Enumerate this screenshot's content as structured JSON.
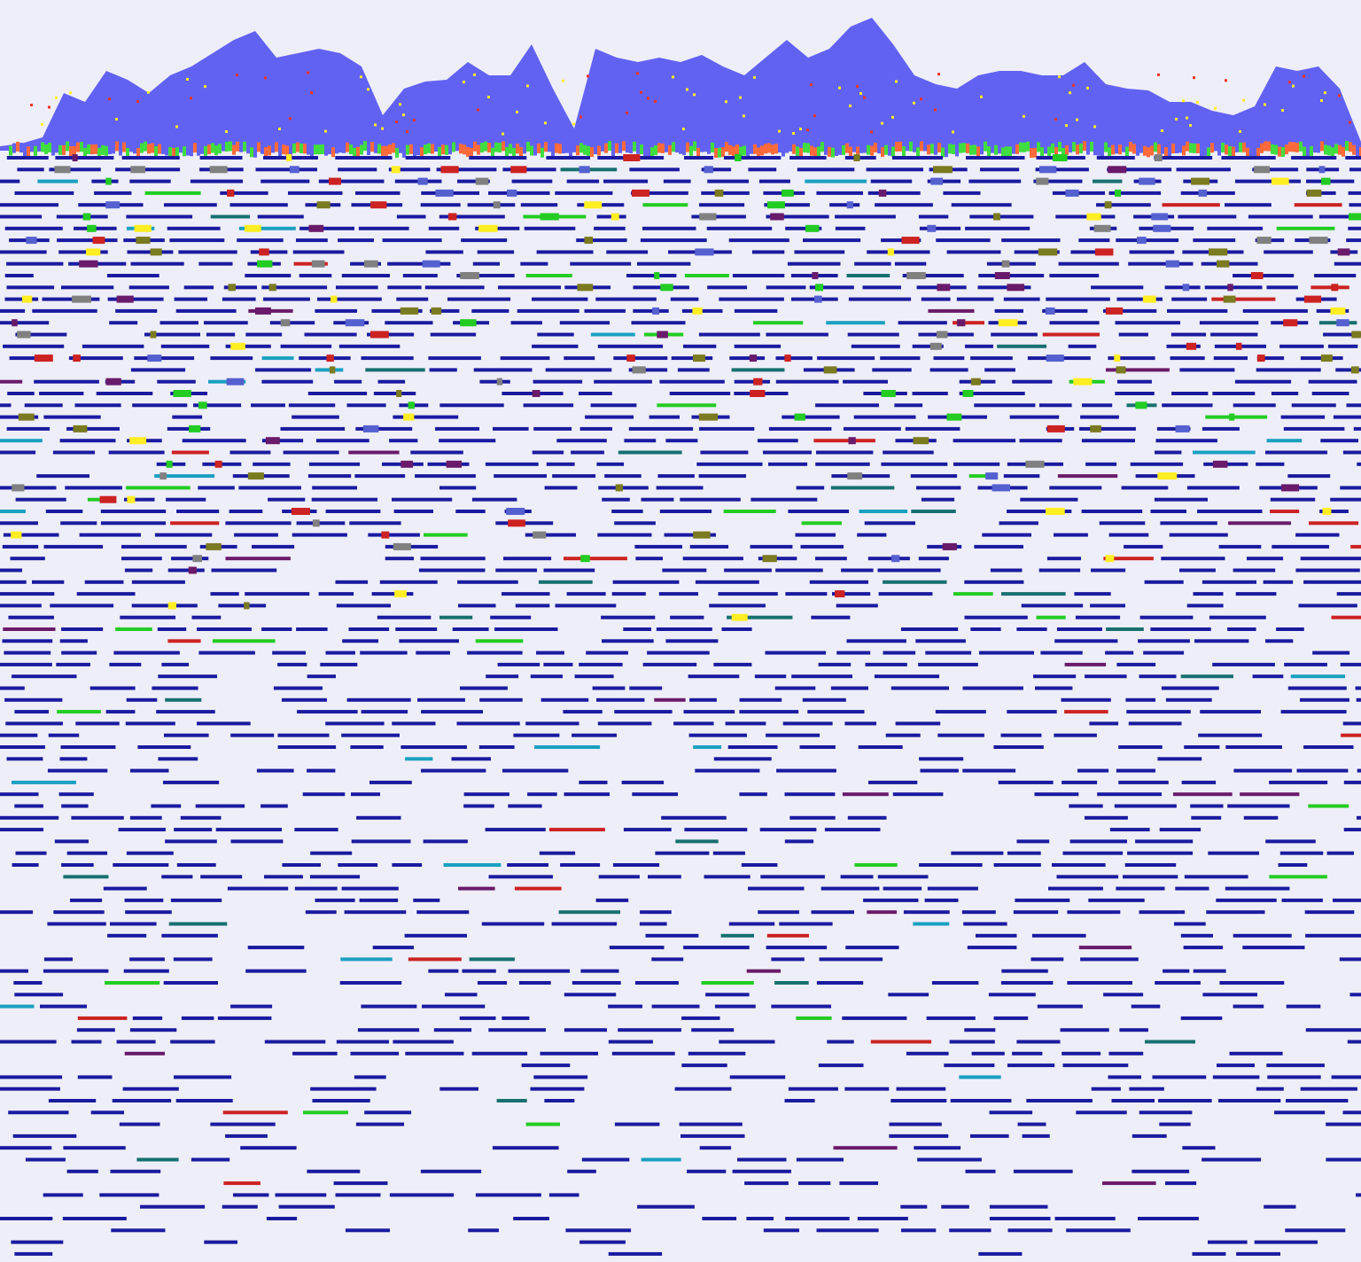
{
  "chart_data": {
    "type": "area",
    "color": "#6262f2",
    "ylim": [
      0,
      160
    ],
    "values": [
      5,
      8,
      15,
      65,
      55,
      90,
      80,
      65,
      85,
      95,
      110,
      125,
      135,
      105,
      110,
      115,
      110,
      95,
      40,
      70,
      78,
      80,
      100,
      85,
      85,
      120,
      70,
      25,
      115,
      105,
      100,
      105,
      100,
      108,
      95,
      85,
      105,
      125,
      105,
      115,
      140,
      150,
      120,
      85,
      75,
      70,
      85,
      90,
      90,
      85,
      85,
      100,
      75,
      70,
      68,
      55,
      55,
      45,
      40,
      50,
      95,
      90,
      95,
      70,
      10
    ]
  }
}
